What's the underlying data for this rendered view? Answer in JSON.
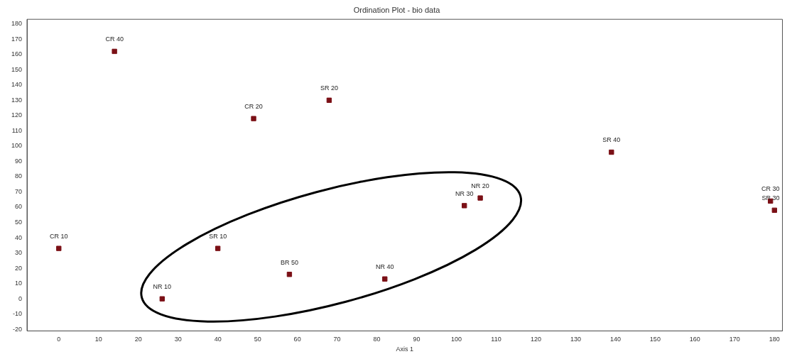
{
  "chart_data": {
    "type": "scatter",
    "title": "Ordination Plot - bio data",
    "xlabel": "Axis 1",
    "x": [
      0,
      14,
      26,
      40,
      49,
      58,
      68,
      82,
      102,
      106,
      139,
      179,
      180
    ],
    "series": [
      {
        "color": "#7b1016",
        "values": [
          33,
          162,
          0,
          33,
          118,
          16,
          130,
          13,
          61,
          66,
          96,
          64,
          58
        ]
      }
    ],
    "annotations": [
      {
        "text": "CR 10",
        "x": 0,
        "y": 33
      },
      {
        "text": "CR 40",
        "x": 14,
        "y": 162
      },
      {
        "text": "NR 10",
        "x": 26,
        "y": 0
      },
      {
        "text": "SR 10",
        "x": 40,
        "y": 33
      },
      {
        "text": "CR 20",
        "x": 49,
        "y": 118
      },
      {
        "text": "BR 50",
        "x": 58,
        "y": 16
      },
      {
        "text": "SR 20",
        "x": 68,
        "y": 130
      },
      {
        "text": "NR 40",
        "x": 82,
        "y": 13
      },
      {
        "text": "NR 30",
        "x": 102,
        "y": 61
      },
      {
        "text": "NR 20",
        "x": 106,
        "y": 66
      },
      {
        "text": "SR 40",
        "x": 139,
        "y": 96
      },
      {
        "text": "CR 30",
        "x": 179,
        "y": 64
      },
      {
        "text": "SR 30",
        "x": 180,
        "y": 58
      }
    ],
    "xlim": [
      -8,
      182
    ],
    "ylim": [
      -21,
      183
    ],
    "xticks": [
      0,
      10,
      20,
      30,
      40,
      50,
      60,
      70,
      80,
      90,
      100,
      110,
      120,
      130,
      140,
      150,
      160,
      170,
      180
    ],
    "yticks": [
      -20,
      -10,
      0,
      10,
      20,
      30,
      40,
      50,
      60,
      70,
      80,
      90,
      100,
      110,
      120,
      130,
      140,
      150,
      160,
      170,
      180
    ],
    "marker": "square",
    "grid": false,
    "legend": false
  }
}
